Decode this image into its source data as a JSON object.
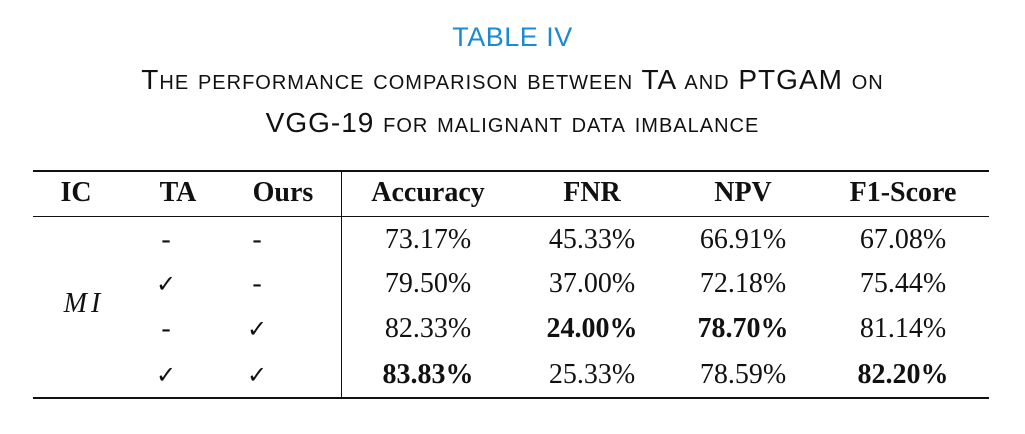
{
  "caption": {
    "label": "TABLE IV",
    "title_line1": "The performance comparison between TA and PTGAM on",
    "title_line2": "VGG-19 for malignant data imbalance"
  },
  "table": {
    "headers": [
      "IC",
      "TA",
      "Ours",
      "Accuracy",
      "FNR",
      "NPV",
      "F1-Score"
    ],
    "ic_value": "MI",
    "rows": [
      {
        "ta": "-",
        "ours": "-",
        "accuracy": "73.17%",
        "fnr": "45.33%",
        "npv": "66.91%",
        "f1": "67.08%"
      },
      {
        "ta": "✓",
        "ours": "-",
        "accuracy": "79.50%",
        "fnr": "37.00%",
        "npv": "72.18%",
        "f1": "75.44%"
      },
      {
        "ta": "-",
        "ours": "✓",
        "accuracy": "82.33%",
        "fnr": "24.00%",
        "npv": "78.70%",
        "f1": "81.14%"
      },
      {
        "ta": "✓",
        "ours": "✓",
        "accuracy": "83.83%",
        "fnr": "25.33%",
        "npv": "78.59%",
        "f1": "82.20%"
      }
    ]
  }
}
